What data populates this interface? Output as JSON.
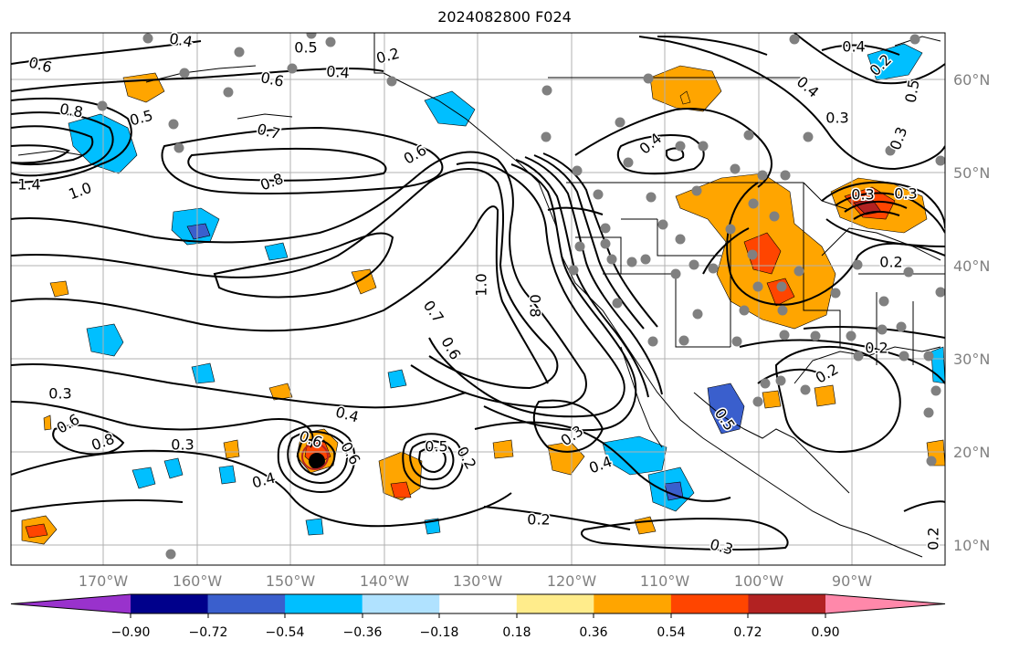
{
  "title": "2024082800 F024",
  "map": {
    "longitude_labels": [
      "170°W",
      "160°W",
      "150°W",
      "140°W",
      "130°W",
      "120°W",
      "110°W",
      "100°W",
      "90°W"
    ],
    "latitude_labels": [
      "60°N",
      "50°N",
      "40°N",
      "30°N",
      "20°N",
      "10°N"
    ],
    "contour_labels": [
      "0.6",
      "0.8",
      "1.4",
      "1.0",
      "0.6",
      "0.5",
      "0.4",
      "0.7",
      "0.8",
      "0.6",
      "0.2",
      "0.5",
      "0.4",
      "0.3",
      "0.8",
      "0.6",
      "0.3",
      "0.4",
      "0.4",
      "0.6",
      "0.5",
      "0.6",
      "0.2",
      "1.0",
      "0.8",
      "0.7",
      "0.6",
      "0.3",
      "0.4",
      "0.5",
      "0.4",
      "0.3",
      "0.4",
      "0.3",
      "0.5",
      "0.3",
      "0.3",
      "0.4",
      "0.2",
      "0.2",
      "0.2",
      "0.3",
      "0.2",
      "0.2",
      "0.2"
    ],
    "colors": {
      "land_outline": "#000000",
      "grid": "#b0b0b0",
      "station_dot": "#808080"
    }
  },
  "colorbar": {
    "ticks": [
      "−0.90",
      "−0.72",
      "−0.54",
      "−0.36",
      "−0.18",
      "0.18",
      "0.36",
      "0.54",
      "0.72",
      "0.90"
    ],
    "colors": [
      "#9932cc",
      "#00008b",
      "#3a5fcd",
      "#00bfff",
      "#b0e2ff",
      "#ffffff",
      "#ffec8b",
      "#ffa500",
      "#ff4500",
      "#b22222",
      "#ff88aa"
    ]
  }
}
